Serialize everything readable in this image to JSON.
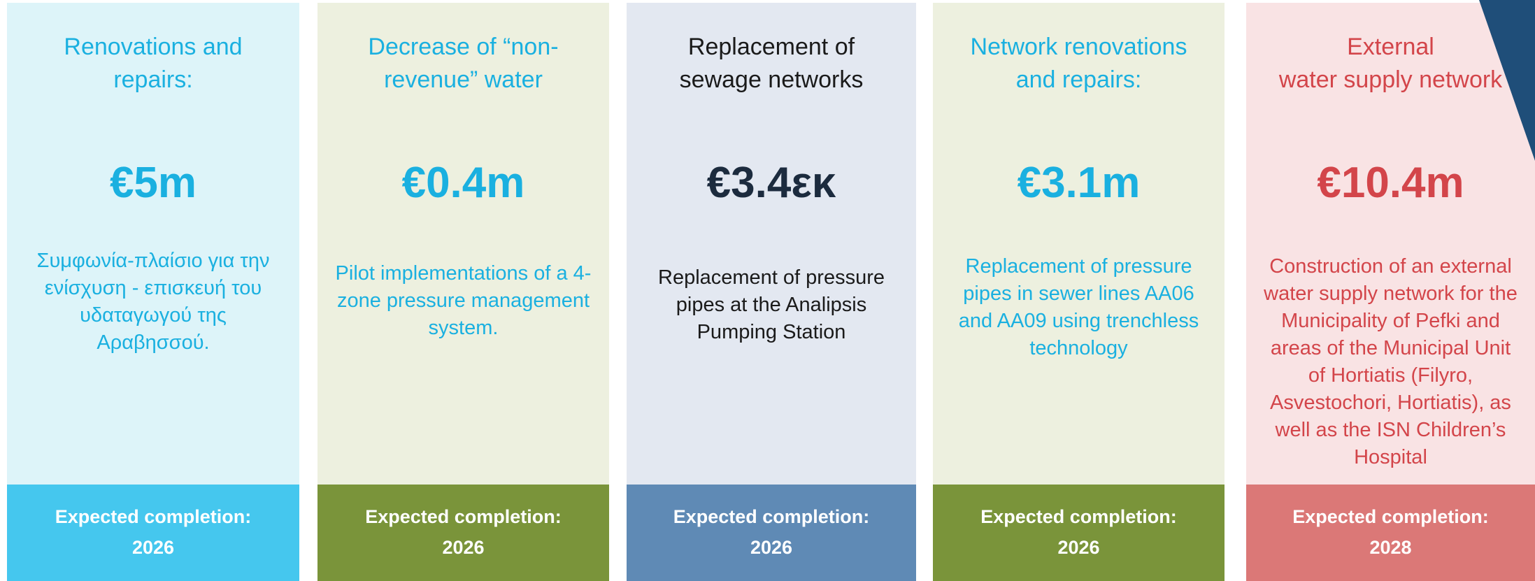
{
  "cards": [
    {
      "title": [
        "Renovations and",
        "repairs:"
      ],
      "amount": "€5m",
      "description": "Συμφωνία-πλαίσιο για την ενίσχυση - επισκευή του υδαταγωγού της Αραβησσού.",
      "completion_label": "Expected completion:",
      "year": "2026"
    },
    {
      "title": [
        "Decrease of “non-",
        "revenue” water"
      ],
      "amount": "€0.4m",
      "description": "Pilot implementations of a 4-zone pressure management system.",
      "completion_label": "Expected completion:",
      "year": "2026"
    },
    {
      "title": [
        "Replacement of",
        "sewage networks"
      ],
      "amount": "€3.4εκ",
      "description": "Replacement of pressure pipes at the Analipsis Pumping Station",
      "completion_label": "Expected completion:",
      "year": "2026"
    },
    {
      "title": [
        "Network renovations",
        "and repairs:"
      ],
      "amount": "€3.1m",
      "description": "Replacement of pressure pipes in sewer lines AA06 and AA09 using trenchless technology",
      "completion_label": "Expected completion:",
      "year": "2026"
    },
    {
      "title": [
        "External",
        "water supply network"
      ],
      "amount": "€10.4m",
      "description": "Construction of an external water supply network for the Municipality of Pefki and areas of the Municipal Unit of Hortiatis (Filyro, Asvestochori, Hortiatis), as well as the ISN Children’s Hospital",
      "completion_label": "Expected completion:",
      "year": "2028"
    }
  ]
}
